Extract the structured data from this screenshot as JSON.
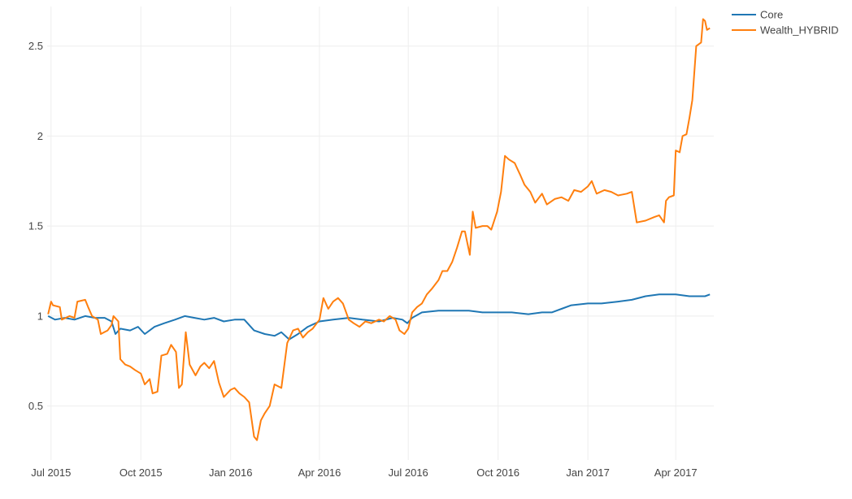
{
  "chart_data": {
    "type": "line",
    "title": "",
    "xlabel": "",
    "ylabel": "",
    "x_range": [
      "2015-06-27",
      "2017-05-10"
    ],
    "ylim": [
      0.2,
      2.72
    ],
    "x_ticks": [
      {
        "date": "2015-07-01",
        "label": "Jul 2015"
      },
      {
        "date": "2015-10-01",
        "label": "Oct 2015"
      },
      {
        "date": "2016-01-01",
        "label": "Jan 2016"
      },
      {
        "date": "2016-04-01",
        "label": "Apr 2016"
      },
      {
        "date": "2016-07-01",
        "label": "Jul 2016"
      },
      {
        "date": "2016-10-01",
        "label": "Oct 2016"
      },
      {
        "date": "2017-01-01",
        "label": "Jan 2017"
      },
      {
        "date": "2017-04-01",
        "label": "Apr 2017"
      }
    ],
    "y_ticks": [
      {
        "value": 0.5,
        "label": "0.5"
      },
      {
        "value": 1,
        "label": "1"
      },
      {
        "value": 1.5,
        "label": "1.5"
      },
      {
        "value": 2,
        "label": "2"
      },
      {
        "value": 2.5,
        "label": "2.5"
      }
    ],
    "grid": true,
    "legend_position": "top-right",
    "series": [
      {
        "name": "Core",
        "color": "#1f77b4",
        "points": [
          [
            "2015-06-28",
            1.0
          ],
          [
            "2015-07-05",
            0.98
          ],
          [
            "2015-07-15",
            0.99
          ],
          [
            "2015-07-25",
            0.98
          ],
          [
            "2015-08-05",
            1.0
          ],
          [
            "2015-08-15",
            0.99
          ],
          [
            "2015-08-25",
            0.99
          ],
          [
            "2015-09-01",
            0.97
          ],
          [
            "2015-09-05",
            0.9
          ],
          [
            "2015-09-10",
            0.93
          ],
          [
            "2015-09-20",
            0.92
          ],
          [
            "2015-09-28",
            0.94
          ],
          [
            "2015-10-05",
            0.9
          ],
          [
            "2015-10-15",
            0.94
          ],
          [
            "2015-10-25",
            0.96
          ],
          [
            "2015-11-05",
            0.98
          ],
          [
            "2015-11-15",
            1.0
          ],
          [
            "2015-11-25",
            0.99
          ],
          [
            "2015-12-05",
            0.98
          ],
          [
            "2015-12-15",
            0.99
          ],
          [
            "2015-12-25",
            0.97
          ],
          [
            "2016-01-05",
            0.98
          ],
          [
            "2016-01-15",
            0.98
          ],
          [
            "2016-01-25",
            0.92
          ],
          [
            "2016-02-05",
            0.9
          ],
          [
            "2016-02-15",
            0.89
          ],
          [
            "2016-02-22",
            0.91
          ],
          [
            "2016-03-01",
            0.87
          ],
          [
            "2016-03-10",
            0.9
          ],
          [
            "2016-03-20",
            0.94
          ],
          [
            "2016-04-01",
            0.97
          ],
          [
            "2016-04-15",
            0.98
          ],
          [
            "2016-05-01",
            0.99
          ],
          [
            "2016-05-15",
            0.98
          ],
          [
            "2016-06-01",
            0.97
          ],
          [
            "2016-06-15",
            0.99
          ],
          [
            "2016-06-25",
            0.98
          ],
          [
            "2016-06-30",
            0.96
          ],
          [
            "2016-07-05",
            0.99
          ],
          [
            "2016-07-15",
            1.02
          ],
          [
            "2016-08-01",
            1.03
          ],
          [
            "2016-08-15",
            1.03
          ],
          [
            "2016-09-01",
            1.03
          ],
          [
            "2016-09-15",
            1.02
          ],
          [
            "2016-10-01",
            1.02
          ],
          [
            "2016-10-15",
            1.02
          ],
          [
            "2016-11-01",
            1.01
          ],
          [
            "2016-11-15",
            1.02
          ],
          [
            "2016-11-25",
            1.02
          ],
          [
            "2016-12-05",
            1.04
          ],
          [
            "2016-12-15",
            1.06
          ],
          [
            "2017-01-01",
            1.07
          ],
          [
            "2017-01-15",
            1.07
          ],
          [
            "2017-02-01",
            1.08
          ],
          [
            "2017-02-15",
            1.09
          ],
          [
            "2017-03-01",
            1.11
          ],
          [
            "2017-03-15",
            1.12
          ],
          [
            "2017-04-01",
            1.12
          ],
          [
            "2017-04-15",
            1.11
          ],
          [
            "2017-05-01",
            1.11
          ],
          [
            "2017-05-06",
            1.12
          ]
        ]
      },
      {
        "name": "Wealth_HYBRID",
        "color": "#ff7f0e",
        "points": [
          [
            "2015-06-28",
            1.01
          ],
          [
            "2015-07-01",
            1.08
          ],
          [
            "2015-07-03",
            1.06
          ],
          [
            "2015-07-10",
            1.05
          ],
          [
            "2015-07-12",
            0.98
          ],
          [
            "2015-07-20",
            1.0
          ],
          [
            "2015-07-25",
            0.99
          ],
          [
            "2015-07-28",
            1.08
          ],
          [
            "2015-08-05",
            1.09
          ],
          [
            "2015-08-08",
            1.05
          ],
          [
            "2015-08-12",
            1.0
          ],
          [
            "2015-08-18",
            0.98
          ],
          [
            "2015-08-21",
            0.9
          ],
          [
            "2015-08-28",
            0.92
          ],
          [
            "2015-09-01",
            0.95
          ],
          [
            "2015-09-03",
            1.0
          ],
          [
            "2015-09-08",
            0.97
          ],
          [
            "2015-09-10",
            0.76
          ],
          [
            "2015-09-15",
            0.73
          ],
          [
            "2015-09-20",
            0.72
          ],
          [
            "2015-09-25",
            0.7
          ],
          [
            "2015-10-01",
            0.68
          ],
          [
            "2015-10-05",
            0.62
          ],
          [
            "2015-10-10",
            0.65
          ],
          [
            "2015-10-13",
            0.57
          ],
          [
            "2015-10-18",
            0.58
          ],
          [
            "2015-10-22",
            0.78
          ],
          [
            "2015-10-28",
            0.79
          ],
          [
            "2015-11-01",
            0.84
          ],
          [
            "2015-11-06",
            0.8
          ],
          [
            "2015-11-09",
            0.6
          ],
          [
            "2015-11-12",
            0.62
          ],
          [
            "2015-11-16",
            0.91
          ],
          [
            "2015-11-20",
            0.73
          ],
          [
            "2015-11-26",
            0.67
          ],
          [
            "2015-12-01",
            0.72
          ],
          [
            "2015-12-05",
            0.74
          ],
          [
            "2015-12-10",
            0.71
          ],
          [
            "2015-12-15",
            0.75
          ],
          [
            "2015-12-20",
            0.63
          ],
          [
            "2015-12-25",
            0.55
          ],
          [
            "2016-01-01",
            0.59
          ],
          [
            "2016-01-05",
            0.6
          ],
          [
            "2016-01-10",
            0.57
          ],
          [
            "2016-01-15",
            0.55
          ],
          [
            "2016-01-20",
            0.52
          ],
          [
            "2016-01-25",
            0.33
          ],
          [
            "2016-01-28",
            0.31
          ],
          [
            "2016-02-01",
            0.42
          ],
          [
            "2016-02-05",
            0.46
          ],
          [
            "2016-02-10",
            0.5
          ],
          [
            "2016-02-15",
            0.62
          ],
          [
            "2016-02-22",
            0.6
          ],
          [
            "2016-02-28",
            0.85
          ],
          [
            "2016-03-05",
            0.92
          ],
          [
            "2016-03-10",
            0.93
          ],
          [
            "2016-03-15",
            0.88
          ],
          [
            "2016-03-20",
            0.91
          ],
          [
            "2016-03-25",
            0.93
          ],
          [
            "2016-04-01",
            0.98
          ],
          [
            "2016-04-05",
            1.1
          ],
          [
            "2016-04-10",
            1.04
          ],
          [
            "2016-04-15",
            1.08
          ],
          [
            "2016-04-20",
            1.1
          ],
          [
            "2016-04-25",
            1.07
          ],
          [
            "2016-05-01",
            0.98
          ],
          [
            "2016-05-06",
            0.96
          ],
          [
            "2016-05-12",
            0.94
          ],
          [
            "2016-05-18",
            0.97
          ],
          [
            "2016-05-24",
            0.96
          ],
          [
            "2016-06-01",
            0.98
          ],
          [
            "2016-06-06",
            0.97
          ],
          [
            "2016-06-12",
            1.0
          ],
          [
            "2016-06-18",
            0.98
          ],
          [
            "2016-06-22",
            0.92
          ],
          [
            "2016-06-27",
            0.9
          ],
          [
            "2016-07-01",
            0.93
          ],
          [
            "2016-07-05",
            1.02
          ],
          [
            "2016-07-10",
            1.05
          ],
          [
            "2016-07-15",
            1.07
          ],
          [
            "2016-07-20",
            1.12
          ],
          [
            "2016-07-25",
            1.15
          ],
          [
            "2016-08-01",
            1.2
          ],
          [
            "2016-08-05",
            1.25
          ],
          [
            "2016-08-10",
            1.25
          ],
          [
            "2016-08-15",
            1.3
          ],
          [
            "2016-08-20",
            1.38
          ],
          [
            "2016-08-25",
            1.47
          ],
          [
            "2016-08-28",
            1.47
          ],
          [
            "2016-09-02",
            1.34
          ],
          [
            "2016-09-05",
            1.58
          ],
          [
            "2016-09-08",
            1.49
          ],
          [
            "2016-09-15",
            1.5
          ],
          [
            "2016-09-20",
            1.5
          ],
          [
            "2016-09-24",
            1.48
          ],
          [
            "2016-09-30",
            1.58
          ],
          [
            "2016-10-04",
            1.69
          ],
          [
            "2016-10-08",
            1.89
          ],
          [
            "2016-10-12",
            1.87
          ],
          [
            "2016-10-18",
            1.85
          ],
          [
            "2016-10-24",
            1.78
          ],
          [
            "2016-10-28",
            1.73
          ],
          [
            "2016-11-03",
            1.69
          ],
          [
            "2016-11-08",
            1.63
          ],
          [
            "2016-11-15",
            1.68
          ],
          [
            "2016-11-20",
            1.62
          ],
          [
            "2016-11-28",
            1.65
          ],
          [
            "2016-12-05",
            1.66
          ],
          [
            "2016-12-12",
            1.64
          ],
          [
            "2016-12-18",
            1.7
          ],
          [
            "2016-12-25",
            1.69
          ],
          [
            "2017-01-01",
            1.72
          ],
          [
            "2017-01-05",
            1.75
          ],
          [
            "2017-01-10",
            1.68
          ],
          [
            "2017-01-18",
            1.7
          ],
          [
            "2017-01-25",
            1.69
          ],
          [
            "2017-02-01",
            1.67
          ],
          [
            "2017-02-10",
            1.68
          ],
          [
            "2017-02-15",
            1.69
          ],
          [
            "2017-02-20",
            1.52
          ],
          [
            "2017-03-01",
            1.53
          ],
          [
            "2017-03-10",
            1.55
          ],
          [
            "2017-03-15",
            1.56
          ],
          [
            "2017-03-20",
            1.52
          ],
          [
            "2017-03-22",
            1.64
          ],
          [
            "2017-03-25",
            1.66
          ],
          [
            "2017-03-30",
            1.67
          ],
          [
            "2017-04-01",
            1.92
          ],
          [
            "2017-04-05",
            1.91
          ],
          [
            "2017-04-08",
            2.0
          ],
          [
            "2017-04-12",
            2.01
          ],
          [
            "2017-04-15",
            2.1
          ],
          [
            "2017-04-18",
            2.2
          ],
          [
            "2017-04-22",
            2.5
          ],
          [
            "2017-04-27",
            2.52
          ],
          [
            "2017-04-29",
            2.65
          ],
          [
            "2017-05-01",
            2.64
          ],
          [
            "2017-05-03",
            2.59
          ],
          [
            "2017-05-06",
            2.6
          ]
        ]
      }
    ]
  }
}
